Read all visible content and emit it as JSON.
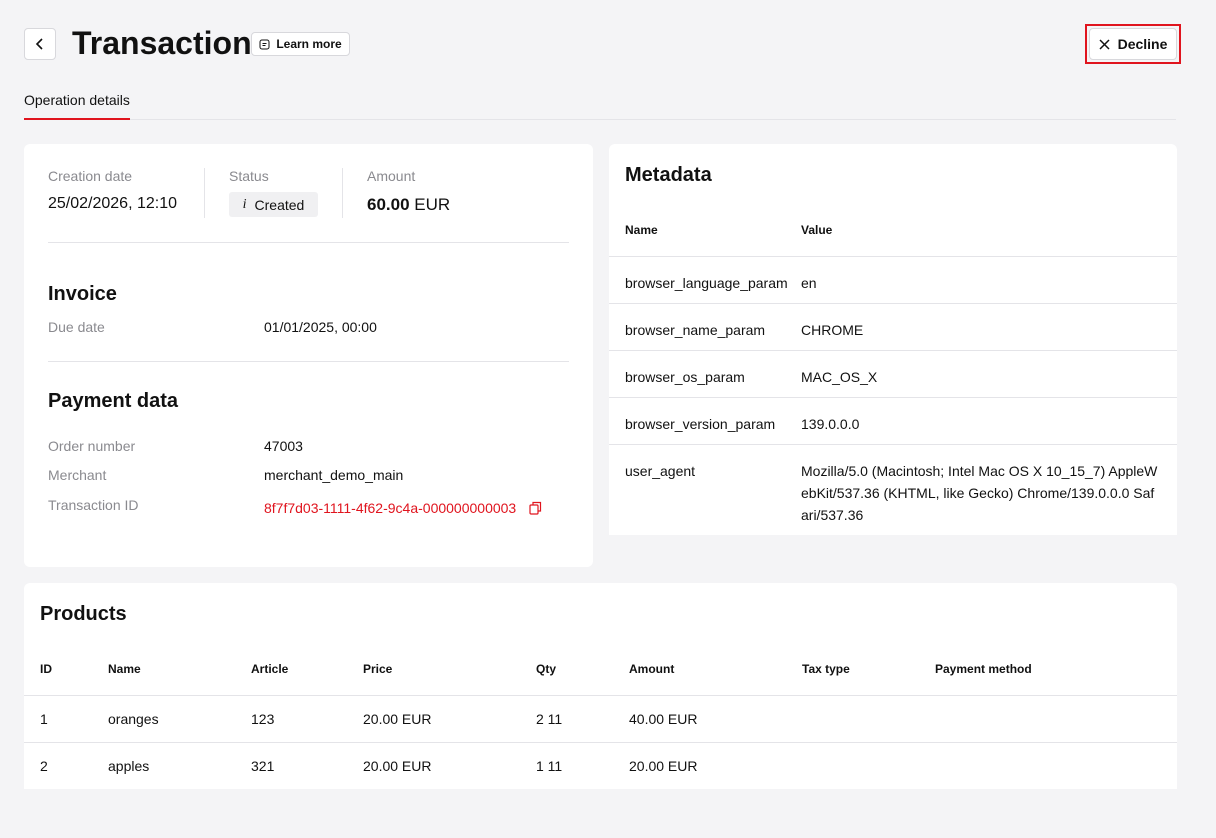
{
  "header": {
    "title": "Transaction",
    "learn_more": "Learn more",
    "decline": "Decline"
  },
  "tabs": [
    "Operation details"
  ],
  "summary": {
    "creation_date": {
      "label": "Creation date",
      "value": "25/02/2026, 12:10"
    },
    "status": {
      "label": "Status",
      "value": "Created"
    },
    "amount": {
      "label": "Amount",
      "value": "60.00",
      "currency": "EUR"
    }
  },
  "invoice": {
    "title": "Invoice",
    "fields": [
      {
        "label": "Due date",
        "value": "01/01/2025, 00:00"
      }
    ]
  },
  "payment_data": {
    "title": "Payment data",
    "fields": [
      {
        "label": "Order number",
        "value": "47003"
      },
      {
        "label": "Merchant",
        "value": "merchant_demo_main"
      },
      {
        "label": "Transaction ID",
        "value": "8f7f7d03-1111-4f62-9c4a-000000000003"
      }
    ]
  },
  "metadata": {
    "title": "Metadata",
    "columns": [
      "Name",
      "Value"
    ],
    "rows": [
      [
        "browser_language_param",
        "en"
      ],
      [
        "browser_name_param",
        "CHROME"
      ],
      [
        "browser_os_param",
        "MAC_OS_X"
      ],
      [
        "browser_version_param",
        "139.0.0.0"
      ],
      [
        "user_agent",
        "Mozilla/5.0 (Macintosh; Intel Mac OS X 10_15_7) AppleWebKit/537.36 (KHTML, like Gecko) Chrome/139.0.0.0 Safari/537.36"
      ]
    ]
  },
  "products": {
    "title": "Products",
    "columns": [
      "ID",
      "Name",
      "Article",
      "Price",
      "Qty",
      "Amount",
      "Tax type",
      "Payment method"
    ],
    "rows": [
      [
        "1",
        "oranges",
        "123",
        "20.00 EUR",
        "2 11",
        "40.00 EUR"
      ],
      [
        "2",
        "apples",
        "321",
        "20.00 EUR",
        "1 11",
        "20.00 EUR"
      ]
    ]
  }
}
